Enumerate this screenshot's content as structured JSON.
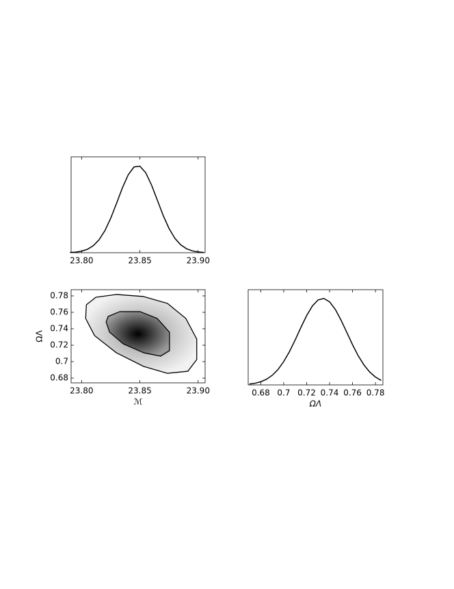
{
  "chart_data": [
    {
      "type": "line",
      "x": [
        23.79,
        23.795,
        23.8,
        23.805,
        23.81,
        23.815,
        23.82,
        23.825,
        23.83,
        23.835,
        23.84,
        23.845,
        23.85,
        23.855,
        23.86,
        23.865,
        23.87,
        23.875,
        23.88,
        23.885,
        23.89,
        23.895,
        23.9,
        23.905
      ],
      "values": [
        0.0028,
        0.0073,
        0.0177,
        0.0392,
        0.08,
        0.149,
        0.253,
        0.396,
        0.567,
        0.744,
        0.894,
        0.984,
        0.993,
        0.918,
        0.777,
        0.603,
        0.428,
        0.279,
        0.166,
        0.091,
        0.046,
        0.021,
        0.0088,
        0.0034
      ],
      "color": "#000000",
      "xlim": [
        23.791,
        23.906
      ],
      "ylim": [
        0,
        1.1
      ],
      "xticks": [
        {
          "value": 23.8,
          "label": "23.80"
        },
        23.85,
        {
          "value": 23.9,
          "label": "23.90"
        }
      ]
    },
    {
      "type": "contour",
      "xlabel": "ℳ",
      "ylabel": "ΩΛ",
      "contours": [
        {
          "x": [
            23.8041,
            23.8123,
            23.8298,
            23.8532,
            23.8737,
            23.8895,
            23.8988,
            23.8988,
            23.8912,
            23.8737,
            23.8532,
            23.8298,
            23.8111,
            23.8035
          ],
          "y": [
            0.7692,
            0.7783,
            0.7817,
            0.7792,
            0.7708,
            0.7525,
            0.7275,
            0.7025,
            0.6883,
            0.6858,
            0.6942,
            0.7108,
            0.7317,
            0.7525
          ]
        },
        {
          "x": [
            23.8228,
            23.8327,
            23.8503,
            23.8649,
            23.8754,
            23.8754,
            23.8678,
            23.8532,
            23.8357,
            23.824,
            23.8211
          ],
          "y": [
            0.755,
            0.7608,
            0.7608,
            0.7525,
            0.7358,
            0.7133,
            0.7067,
            0.7108,
            0.7217,
            0.7358,
            0.7483
          ]
        }
      ],
      "color": "#000000",
      "xlim": [
        23.791,
        23.906
      ],
      "ylim": [
        0.6742,
        0.7875
      ],
      "xticks": [
        {
          "value": 23.8,
          "label": "23.80"
        },
        23.85,
        {
          "value": 23.9,
          "label": "23.90"
        }
      ],
      "yticks": [
        0.68,
        0.7,
        0.72,
        0.74,
        0.76,
        0.78
      ]
    },
    {
      "type": "line",
      "xlabel": "ΩΛ",
      "x": [
        0.67,
        0.675,
        0.68,
        0.685,
        0.69,
        0.695,
        0.7,
        0.705,
        0.71,
        0.715,
        0.72,
        0.725,
        0.73,
        0.735,
        0.74,
        0.745,
        0.75,
        0.755,
        0.76,
        0.765,
        0.77,
        0.775,
        0.78,
        0.785
      ],
      "values": [
        0.0096,
        0.0193,
        0.0367,
        0.0657,
        0.111,
        0.178,
        0.27,
        0.385,
        0.52,
        0.664,
        0.801,
        0.912,
        0.982,
        0.999,
        0.96,
        0.872,
        0.748,
        0.607,
        0.465,
        0.336,
        0.23,
        0.149,
        0.091,
        0.052
      ],
      "color": "#000000",
      "xlim": [
        0.669,
        0.7865
      ],
      "ylim": [
        0,
        1.1
      ],
      "xticks": [
        0.68,
        0.7,
        0.72,
        0.74,
        0.76,
        0.78
      ]
    }
  ]
}
